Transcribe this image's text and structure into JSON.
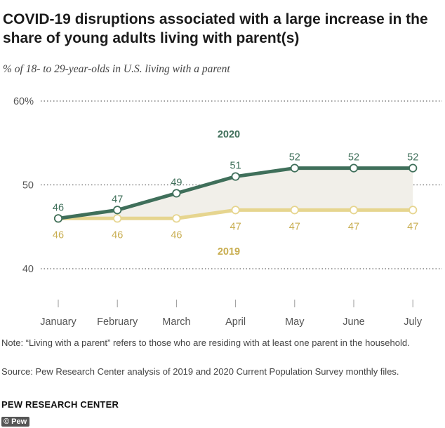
{
  "header": {
    "title": "COVID-19 disruptions associated with a large increase in the share of young adults living with parent(s)",
    "subtitle": "% of 18- to 29-year-olds in U.S. living with a parent"
  },
  "footer": {
    "note": "Note: “Living with a parent” refers to those who are residing with at least one parent in the household.",
    "source": "Source: Pew Research Center analysis of 2019 and 2020 Current Population Survey monthly files.",
    "brand": "PEW RESEARCH CENTER",
    "watermark": "© Pew"
  },
  "chart_data": {
    "type": "line",
    "title": "COVID-19 disruptions associated with a large increase in the share of young adults living with parent(s)",
    "subtitle": "% of 18- to 29-year-olds in U.S. living with a parent",
    "categories": [
      "January",
      "February",
      "March",
      "April",
      "May",
      "June",
      "July"
    ],
    "series": [
      {
        "name": "2020",
        "color": "#3f6f5a",
        "values": [
          46,
          47,
          49,
          51,
          52,
          52,
          52
        ]
      },
      {
        "name": "2019",
        "color": "#e6d58f",
        "values": [
          46,
          46,
          46,
          47,
          47,
          47,
          47
        ]
      }
    ],
    "ylim": [
      40,
      60
    ],
    "yticks": [
      40,
      50,
      60
    ],
    "ytick_labels": [
      "40",
      "50",
      "60%"
    ],
    "gap_fill_color": "#f1efe9",
    "label_colors": {
      "2020": "#3f6f5a",
      "2019": "#c8ad4f"
    },
    "grid": true
  }
}
